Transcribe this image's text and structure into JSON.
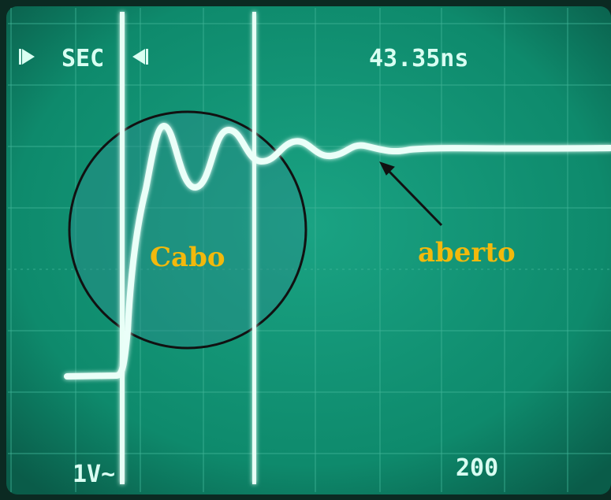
{
  "screen": {
    "readouts": {
      "top_left": "SEC",
      "top_right": "43.35ns",
      "bottom_left": "1V~",
      "bottom_right": "200"
    }
  },
  "annotations": {
    "circle_label": "Cabo",
    "arrow_label": "aberto"
  }
}
